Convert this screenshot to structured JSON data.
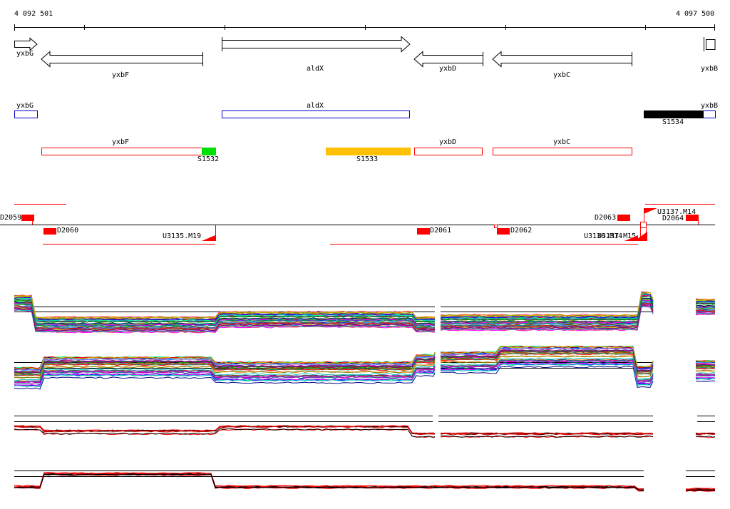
{
  "coords": {
    "start": "4 092 501",
    "end": "4 097 500"
  },
  "track_arrows": [
    {
      "name": "yxbG",
      "dir": "right"
    },
    {
      "name": "yxbF",
      "dir": "left"
    },
    {
      "name": "aldX",
      "dir": "right"
    },
    {
      "name": "yxbD",
      "dir": "left"
    },
    {
      "name": "yxbC",
      "dir": "left"
    },
    {
      "name": "yxbB",
      "dir": "right"
    }
  ],
  "genes_blue": [
    "yxbG",
    "aldX",
    "yxbB"
  ],
  "genes_red": [
    "yxbF",
    "yxbD",
    "yxbC"
  ],
  "segments": [
    {
      "name": "S1532",
      "color": "#00e000"
    },
    {
      "name": "S1533",
      "color": "#ffc000"
    },
    {
      "name": "S1534",
      "color": "#000000"
    }
  ],
  "features": {
    "top_labels": [
      "D2059",
      "D2063",
      "U3137.M14",
      "D2064"
    ],
    "bottom_labels": [
      "D2060",
      "U3135.M19",
      "D2061",
      "D2062",
      "U3136.M14",
      "U3137.M15"
    ]
  },
  "colors": {
    "gene_arrow": "#000000",
    "gene_blue": "#0000c0",
    "gene_red": "#ff0000",
    "feature": "#ff0000",
    "axis": "#000000"
  }
}
